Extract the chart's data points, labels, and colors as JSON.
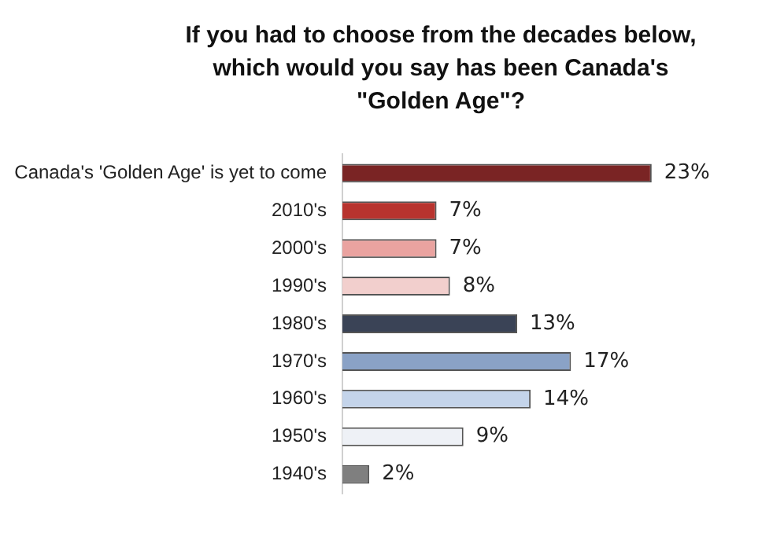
{
  "chart_data": {
    "type": "bar",
    "orientation": "horizontal",
    "title": "If you had to choose from the decades below, which would you say has been Canada's \"Golden Age\"?",
    "categories": [
      "Canada's 'Golden Age' is yet to come",
      "2010's",
      "2000's",
      "1990's",
      "1980's",
      "1970's",
      "1960's",
      "1950's",
      "1940's"
    ],
    "values": [
      23,
      7,
      7,
      8,
      13,
      17,
      14,
      9,
      2
    ],
    "colors": [
      "#7a2424",
      "#b8332e",
      "#eaa3a0",
      "#f2cfcd",
      "#3a4356",
      "#8aa2c6",
      "#c4d4ea",
      "#eef1f6",
      "#7f7f7f"
    ],
    "value_labels": [
      "23%",
      "7%",
      "7%",
      "8%",
      "13%",
      "17%",
      "14%",
      "9%",
      "2%"
    ]
  }
}
